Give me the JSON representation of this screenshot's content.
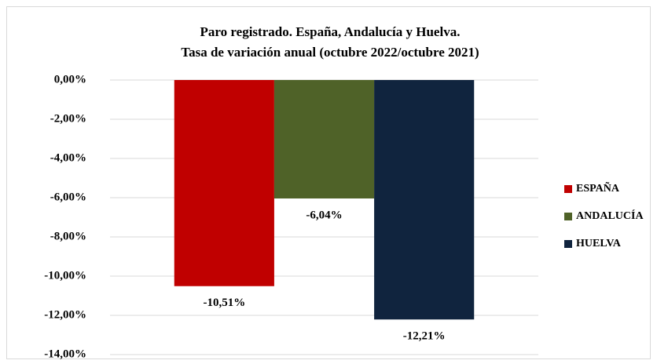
{
  "chart_data": {
    "type": "bar",
    "title": [
      "Paro registrado. España, Andalucía y Huelva.",
      "Tasa de variación anual (octubre 2022/octubre 2021)"
    ],
    "categories": [
      null
    ],
    "series": [
      {
        "name": "ESPAÑA",
        "color": "#c00000",
        "values": [
          -10.51
        ],
        "value_labels": [
          "-10,51%"
        ]
      },
      {
        "name": "ANDALUCÍA",
        "color": "#4f6228",
        "values": [
          -6.04
        ],
        "value_labels": [
          "-6,04%"
        ]
      },
      {
        "name": "HUELVA",
        "color": "#10243e",
        "values": [
          -12.21
        ],
        "value_labels": [
          "-12,21%"
        ]
      }
    ],
    "ylim": [
      -14,
      0
    ],
    "yticks": [
      {
        "value": 0,
        "label": "0,00%"
      },
      {
        "value": -2,
        "label": "-2,00%"
      },
      {
        "value": -4,
        "label": "-4,00%"
      },
      {
        "value": -6,
        "label": "-6,00%"
      },
      {
        "value": -8,
        "label": "-8,00%"
      },
      {
        "value": -10,
        "label": "-10,00%"
      },
      {
        "value": -12,
        "label": "-12,00%"
      },
      {
        "value": -14,
        "label": "-14,00%"
      }
    ],
    "grid": true,
    "legend": "right"
  }
}
